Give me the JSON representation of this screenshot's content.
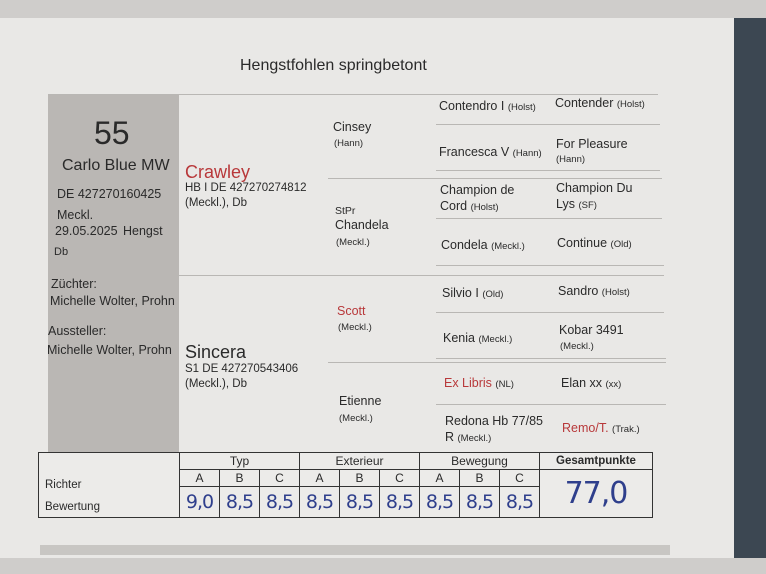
{
  "title": "Hengstfohlen springbetont",
  "foal": {
    "number": "55",
    "name": "Carlo Blue MW",
    "ueln": "DE 427270160425",
    "breed": "Meckl.",
    "birth": "29.05.2025",
    "sex": "Hengst",
    "color": "Db",
    "breeder_label": "Züchter:",
    "breeder": "Michelle Wolter, Prohn",
    "exhibitor_label": "Aussteller:",
    "exhibitor": "Michelle Wolter, Prohn"
  },
  "sire": {
    "name": "Crawley",
    "line1": "HB I  DE 427270274812",
    "line2": "(Meckl.), Db"
  },
  "dam": {
    "name": "Sincera",
    "line1": "S1  DE 427270543406",
    "line2": "(Meckl.), Db"
  },
  "gen2": [
    {
      "prefix": "",
      "name": "Cinsey",
      "reg": "(Hann)",
      "red": false
    },
    {
      "prefix": "StPr",
      "name": "Chandela",
      "reg": "(Meckl.)",
      "red": false
    },
    {
      "prefix": "",
      "name": "Scott",
      "reg": "(Meckl.)",
      "red": true
    },
    {
      "prefix": "",
      "name": "Etienne",
      "reg": "(Meckl.)",
      "red": false
    }
  ],
  "gen3": [
    {
      "name": "Contendro I",
      "reg": "(Holst)"
    },
    {
      "name": "Francesca V",
      "reg": "(Hann)"
    },
    {
      "name": "Champion de",
      "name2": "Cord",
      "reg": "(Holst)"
    },
    {
      "name": "Condela",
      "reg": "(Meckl.)"
    },
    {
      "name": "Silvio I",
      "reg": "(Old)"
    },
    {
      "name": "Kenia",
      "reg": "(Meckl.)"
    },
    {
      "name": "Ex Libris",
      "reg": "(NL)",
      "red": true
    },
    {
      "name": "Redona Hb 77/85",
      "name2": "R",
      "reg": "(Meckl.)"
    }
  ],
  "gen4": [
    {
      "name": "Contender",
      "reg": "(Holst)"
    },
    {
      "name": "For Pleasure",
      "reg": "(Hann)"
    },
    {
      "name": "Champion Du",
      "name2": "Lys",
      "reg": "(SF)"
    },
    {
      "name": "Continue",
      "reg": "(Old)"
    },
    {
      "name": "Sandro",
      "reg": "(Holst)"
    },
    {
      "name": "Kobar 3491",
      "reg": "(Meckl.)"
    },
    {
      "name": "Elan xx",
      "reg": "(xx)"
    },
    {
      "name": "Remo/T.",
      "reg": "(Trak.)",
      "red": true
    }
  ],
  "scores": {
    "groups": [
      "Typ",
      "Exterieur",
      "Bewegung"
    ],
    "total_label": "Gesamtpunkte",
    "judges_label": "Richter",
    "rating_label": "Bewertung",
    "judges": [
      "A",
      "B",
      "C",
      "A",
      "B",
      "C",
      "A",
      "B",
      "C"
    ],
    "values": [
      "9,0",
      "8,5",
      "8,5",
      "8,5",
      "8,5",
      "8,5",
      "8,5",
      "8,5",
      "8,5"
    ],
    "total": "77,0"
  }
}
